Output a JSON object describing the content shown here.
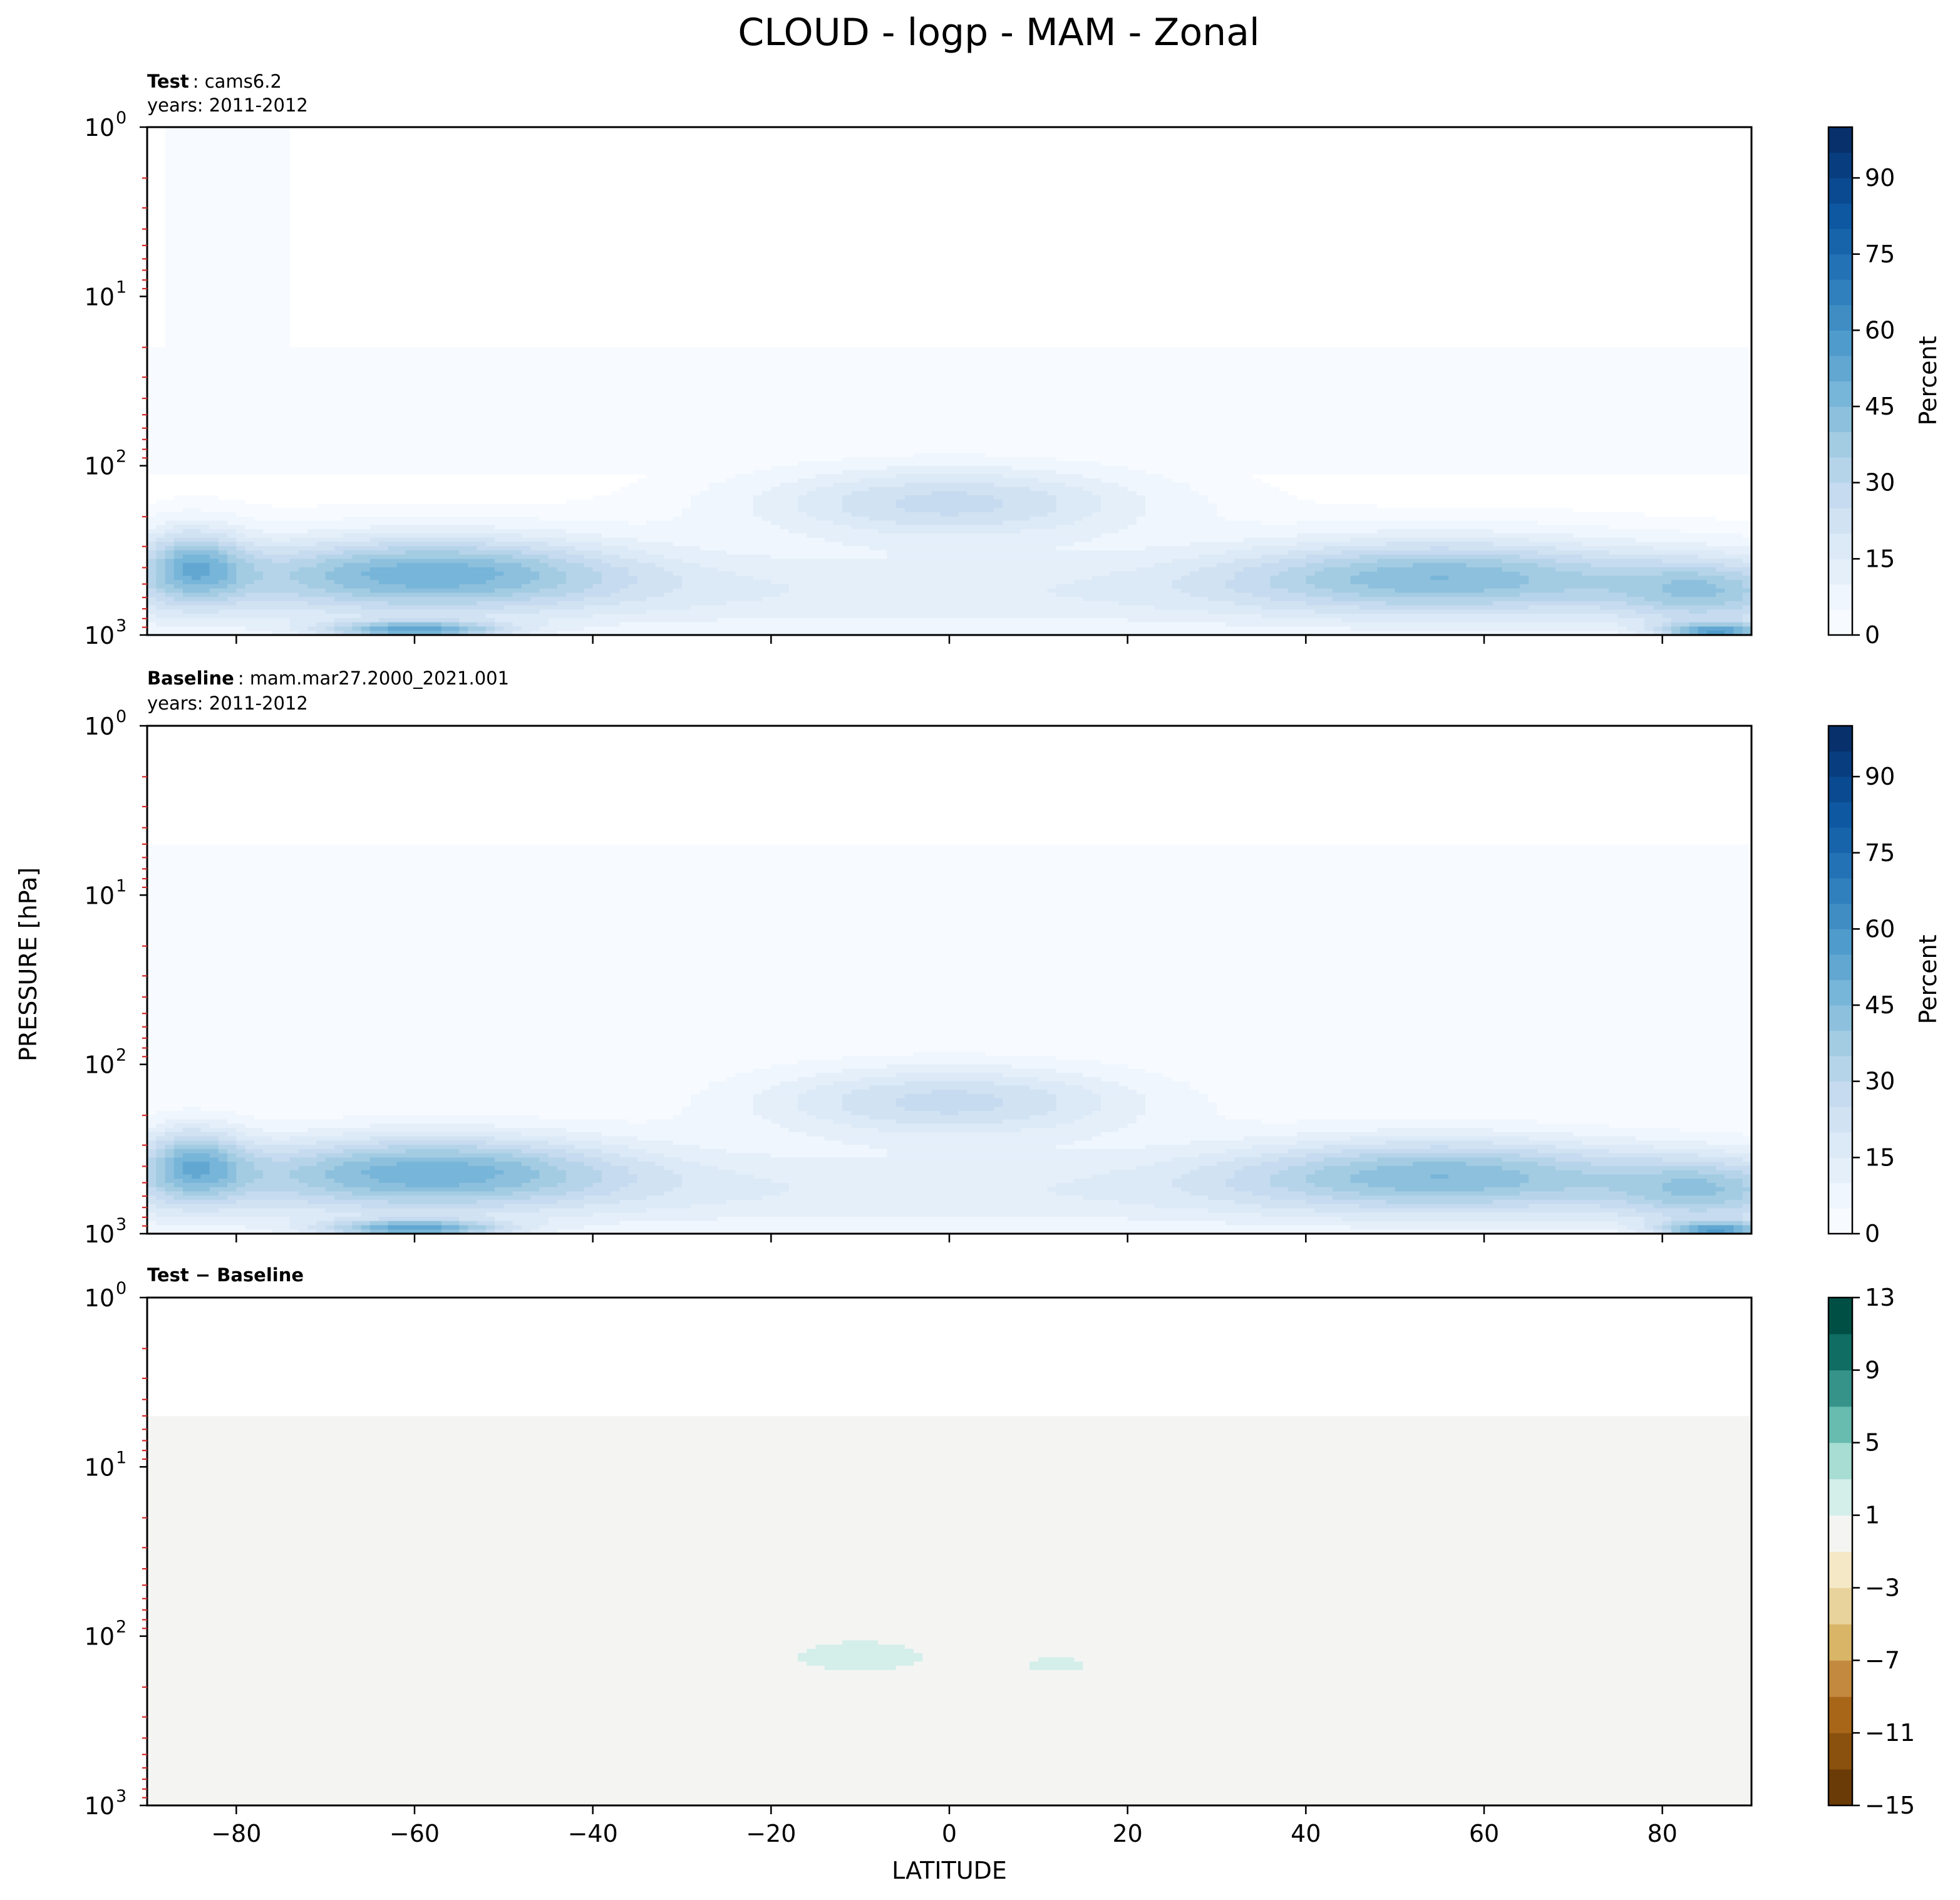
{
  "figure": {
    "title": "CLOUD - logp - MAM - Zonal",
    "ylabel": "PRESSURE [hPa]",
    "xlabel": "LATITUDE"
  },
  "chart_data": [
    {
      "type": "heatmap",
      "label_bold": "Test",
      "label_rest": "cams6.2",
      "subtitle": "years: 2011-2012",
      "x_ticks": [
        -80,
        -60,
        -40,
        -20,
        0,
        20,
        40,
        60,
        80
      ],
      "xlim": [
        -90,
        90
      ],
      "y_scale": "log",
      "y_inverted": true,
      "ylim": [
        1000,
        1
      ],
      "y_ticks": [
        {
          "base": "10",
          "exp": "0",
          "value": 1
        },
        {
          "base": "10",
          "exp": "1",
          "value": 10
        },
        {
          "base": "10",
          "exp": "2",
          "value": 100
        },
        {
          "base": "10",
          "exp": "3",
          "value": 1000
        }
      ],
      "colorbar": {
        "label": "Percent",
        "cmap": "Blues",
        "range": [
          0,
          100
        ],
        "ticks": [
          0,
          15,
          30,
          45,
          60,
          75,
          90
        ],
        "levels": [
          0,
          5,
          10,
          15,
          20,
          25,
          30,
          35,
          40,
          45,
          50,
          55,
          60,
          65,
          70,
          75,
          80,
          85,
          90,
          95,
          100
        ],
        "colors": [
          "#f7fbff",
          "#eff6fd",
          "#e5effa",
          "#dce9f6",
          "#d1e2f3",
          "#c6dbef",
          "#b6d4e9",
          "#a3cce3",
          "#8dc0dd",
          "#77b5d9",
          "#61a7d2",
          "#4f9bcb",
          "#3f8dc3",
          "#3080bd",
          "#2372b5",
          "#1764ab",
          "#0e58a2",
          "#0a4a90",
          "#083e7f",
          "#08306b"
        ]
      },
      "has_stratosphere_band": false
    },
    {
      "type": "heatmap",
      "label_bold": "Baseline",
      "label_rest": "mam.mar27.2000_2021.001",
      "subtitle": "years: 2011-2012",
      "x_ticks": [
        -80,
        -60,
        -40,
        -20,
        0,
        20,
        40,
        60,
        80
      ],
      "xlim": [
        -90,
        90
      ],
      "y_scale": "log",
      "y_inverted": true,
      "ylim": [
        1000,
        1
      ],
      "y_ticks": [
        {
          "base": "10",
          "exp": "0",
          "value": 1
        },
        {
          "base": "10",
          "exp": "1",
          "value": 10
        },
        {
          "base": "10",
          "exp": "2",
          "value": 100
        },
        {
          "base": "10",
          "exp": "3",
          "value": 1000
        }
      ],
      "colorbar": {
        "label": "Percent",
        "cmap": "Blues",
        "range": [
          0,
          100
        ],
        "ticks": [
          0,
          15,
          30,
          45,
          60,
          75,
          90
        ],
        "levels": [
          0,
          5,
          10,
          15,
          20,
          25,
          30,
          35,
          40,
          45,
          50,
          55,
          60,
          65,
          70,
          75,
          80,
          85,
          90,
          95,
          100
        ],
        "colors": [
          "#f7fbff",
          "#eff6fd",
          "#e5effa",
          "#dce9f6",
          "#d1e2f3",
          "#c6dbef",
          "#b6d4e9",
          "#a3cce3",
          "#8dc0dd",
          "#77b5d9",
          "#61a7d2",
          "#4f9bcb",
          "#3f8dc3",
          "#3080bd",
          "#2372b5",
          "#1764ab",
          "#0e58a2",
          "#0a4a90",
          "#083e7f",
          "#08306b"
        ]
      },
      "has_stratosphere_band": true
    },
    {
      "type": "heatmap",
      "label_bold": "Test − Baseline",
      "label_rest": "",
      "subtitle": "",
      "x_ticks": [
        -80,
        -60,
        -40,
        -20,
        0,
        20,
        40,
        60,
        80
      ],
      "xlim": [
        -90,
        90
      ],
      "y_scale": "log",
      "y_inverted": true,
      "ylim": [
        1000,
        1
      ],
      "y_ticks": [
        {
          "base": "10",
          "exp": "0",
          "value": 1
        },
        {
          "base": "10",
          "exp": "1",
          "value": 10
        },
        {
          "base": "10",
          "exp": "2",
          "value": 100
        },
        {
          "base": "10",
          "exp": "3",
          "value": 1000
        }
      ],
      "colorbar": {
        "label": "",
        "cmap": "BrBG",
        "range": [
          -15,
          13
        ],
        "ticks": [
          -15,
          -11,
          -7,
          -3,
          1,
          5,
          9,
          13
        ],
        "tick_labels": [
          "−15",
          "−11",
          "−7",
          "−3",
          "1",
          "5",
          "9",
          "13"
        ],
        "levels": [
          -15,
          -13,
          -11,
          -9,
          -7,
          -5,
          -3,
          -1,
          1,
          3,
          5,
          7,
          9,
          11,
          13
        ],
        "colors": [
          "#6b3b07",
          "#8a500e",
          "#a86619",
          "#c3893f",
          "#d9b568",
          "#e9d39c",
          "#f5e8c7",
          "#f4f5f3",
          "#d4eee9",
          "#a7ddd3",
          "#68bcaf",
          "#35938a",
          "#0f6d63",
          "#004f44"
        ]
      },
      "has_stratosphere_band": true
    }
  ]
}
